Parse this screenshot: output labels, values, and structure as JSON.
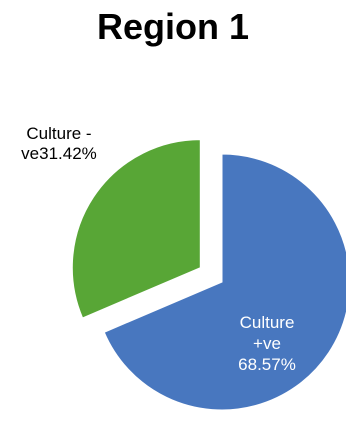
{
  "chart_data": {
    "type": "pie",
    "title": "Region 1",
    "slices": [
      {
        "line1": "Culture",
        "line2": "+ve",
        "pct_label": "68.57%",
        "value": 68.57,
        "color": "#4877bf",
        "exploded": false
      },
      {
        "line1": "Culture -",
        "line2": "ve",
        "pct_label": "31.42%",
        "value": 31.42,
        "color": "#58a636",
        "exploded": true
      }
    ]
  }
}
